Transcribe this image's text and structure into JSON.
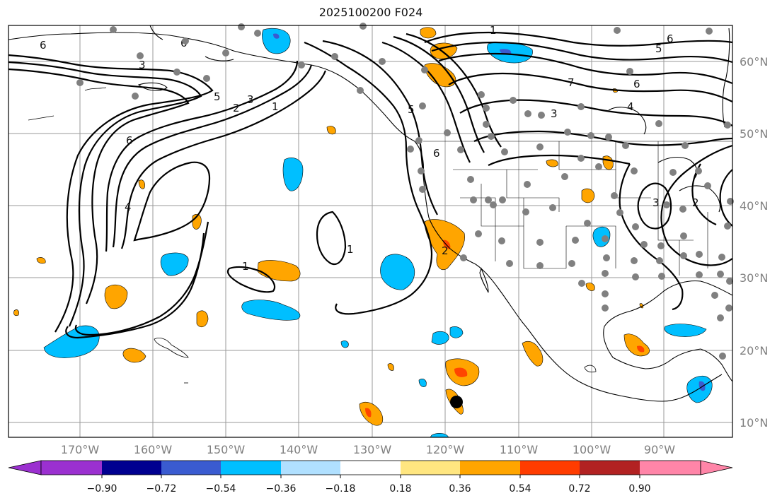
{
  "title": "2025100200 F024",
  "lat_labels": [
    "60°N",
    "50°N",
    "40°N",
    "30°N",
    "20°N",
    "10°N"
  ],
  "lon_labels": [
    "170°W",
    "160°W",
    "150°W",
    "140°W",
    "130°W",
    "120°W",
    "110°W",
    "100°W",
    "90°W"
  ],
  "contour_labels": [
    "6",
    "6",
    "3",
    "5",
    "3",
    "2",
    "1",
    "6",
    "4",
    "1",
    "1",
    "6",
    "5",
    "6",
    "6",
    "3",
    "4",
    "5",
    "7",
    "1",
    "2",
    "3",
    "2"
  ],
  "colorbar": {
    "tick_labels": [
      "−0.90",
      "−0.72",
      "−0.54",
      "−0.36",
      "−0.18",
      "0.18",
      "0.36",
      "0.54",
      "0.72",
      "0.90"
    ],
    "colors": [
      "#9b30d0",
      "#000090",
      "#3a5bd0",
      "#00bfff",
      "#b0e0ff",
      "#ffffff",
      "#ffe680",
      "#ffa500",
      "#ff3c00",
      "#b22222",
      "#ff85a8"
    ]
  },
  "colors": {
    "grid": "#9a9a9a",
    "contour": "#000000",
    "orange": "#ffa500",
    "red": "#ff4500",
    "blue": "#00bfff",
    "label_gray": "#808080",
    "station_dot": "#808080"
  }
}
